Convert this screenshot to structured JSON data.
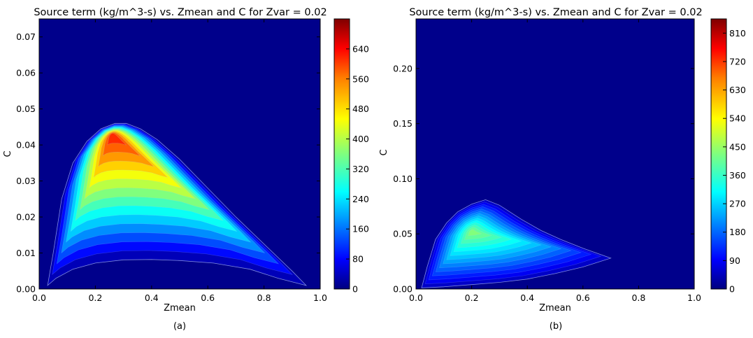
{
  "chart_data": [
    {
      "type": "heatmap",
      "panel_label": "(a)",
      "title": "Source term (kg/m^3-s) vs. Zmean and C for Zvar =  0.02",
      "xlabel": "Zmean",
      "ylabel": "C",
      "xlim": [
        0,
        1.0
      ],
      "ylim": [
        0,
        0.075
      ],
      "x_ticks": [
        0.0,
        0.2,
        0.4,
        0.6,
        0.8,
        1.0
      ],
      "x_tick_labels": [
        "0.0",
        "0.2",
        "0.4",
        "0.6",
        "0.8",
        "1.0"
      ],
      "y_ticks": [
        0.0,
        0.01,
        0.02,
        0.03,
        0.04,
        0.05,
        0.06,
        0.07
      ],
      "y_tick_labels": [
        "0.00",
        "0.01",
        "0.02",
        "0.03",
        "0.04",
        "0.05",
        "0.06",
        "0.07"
      ],
      "colorbar": {
        "range": [
          0,
          720
        ],
        "ticks": [
          0,
          80,
          160,
          240,
          320,
          400,
          480,
          560,
          640
        ],
        "tick_labels": [
          "0",
          "80",
          "160",
          "240",
          "320",
          "400",
          "480",
          "560",
          "640"
        ]
      },
      "region_boundary": {
        "upper": [
          [
            0.03,
            0.001
          ],
          [
            0.05,
            0.01
          ],
          [
            0.08,
            0.025
          ],
          [
            0.12,
            0.035
          ],
          [
            0.17,
            0.041
          ],
          [
            0.22,
            0.0445
          ],
          [
            0.27,
            0.046
          ],
          [
            0.31,
            0.046
          ],
          [
            0.36,
            0.0445
          ],
          [
            0.42,
            0.0415
          ],
          [
            0.5,
            0.036
          ],
          [
            0.6,
            0.028
          ],
          [
            0.7,
            0.02
          ],
          [
            0.8,
            0.0125
          ],
          [
            0.9,
            0.005
          ],
          [
            0.95,
            0.001
          ]
        ],
        "lower": [
          [
            0.95,
            0.001
          ],
          [
            0.85,
            0.003
          ],
          [
            0.75,
            0.0055
          ],
          [
            0.62,
            0.0072
          ],
          [
            0.5,
            0.0079
          ],
          [
            0.4,
            0.0082
          ],
          [
            0.3,
            0.0081
          ],
          [
            0.2,
            0.0072
          ],
          [
            0.12,
            0.0055
          ],
          [
            0.06,
            0.003
          ],
          [
            0.03,
            0.001
          ]
        ]
      },
      "peak": {
        "x": 0.26,
        "y": 0.043,
        "value": 600
      },
      "level_min": 40
    },
    {
      "type": "heatmap",
      "panel_label": "(b)",
      "title": "Source term (kg/m^3-s) vs. Zmean and C for Zvar =  0.02",
      "xlabel": "Zmean",
      "ylabel": "C",
      "xlim": [
        0,
        1.0
      ],
      "ylim": [
        0,
        0.245
      ],
      "x_ticks": [
        0.0,
        0.2,
        0.4,
        0.6,
        0.8,
        1.0
      ],
      "x_tick_labels": [
        "0.0",
        "0.2",
        "0.4",
        "0.6",
        "0.8",
        "1.0"
      ],
      "y_ticks": [
        0.0,
        0.05,
        0.1,
        0.15,
        0.2
      ],
      "y_tick_labels": [
        "0.00",
        "0.05",
        "0.10",
        "0.15",
        "0.20"
      ],
      "colorbar": {
        "range": [
          0,
          855
        ],
        "ticks": [
          0,
          90,
          180,
          270,
          360,
          450,
          540,
          630,
          720,
          810
        ],
        "tick_labels": [
          "0",
          "90",
          "180",
          "270",
          "360",
          "450",
          "540",
          "630",
          "720",
          "810"
        ]
      },
      "region_boundary": {
        "upper": [
          [
            0.02,
            0.001
          ],
          [
            0.04,
            0.02
          ],
          [
            0.07,
            0.045
          ],
          [
            0.11,
            0.06
          ],
          [
            0.15,
            0.07
          ],
          [
            0.2,
            0.077
          ],
          [
            0.25,
            0.081
          ],
          [
            0.3,
            0.076
          ],
          [
            0.38,
            0.063
          ],
          [
            0.45,
            0.053
          ],
          [
            0.52,
            0.045
          ],
          [
            0.6,
            0.037
          ],
          [
            0.7,
            0.028
          ]
        ],
        "lower": [
          [
            0.7,
            0.028
          ],
          [
            0.6,
            0.02
          ],
          [
            0.5,
            0.014
          ],
          [
            0.4,
            0.009
          ],
          [
            0.3,
            0.006
          ],
          [
            0.2,
            0.004
          ],
          [
            0.1,
            0.002
          ],
          [
            0.02,
            0.001
          ]
        ]
      },
      "peak": {
        "x": 0.2,
        "y": 0.052,
        "value": 430
      },
      "level_min": 60
    }
  ],
  "colormap": [
    "#00007f",
    "#0000ff",
    "#007fff",
    "#00ffff",
    "#7fff7f",
    "#ffff00",
    "#ff7f00",
    "#ff0000",
    "#7f0000"
  ],
  "background_color": "#00008b"
}
